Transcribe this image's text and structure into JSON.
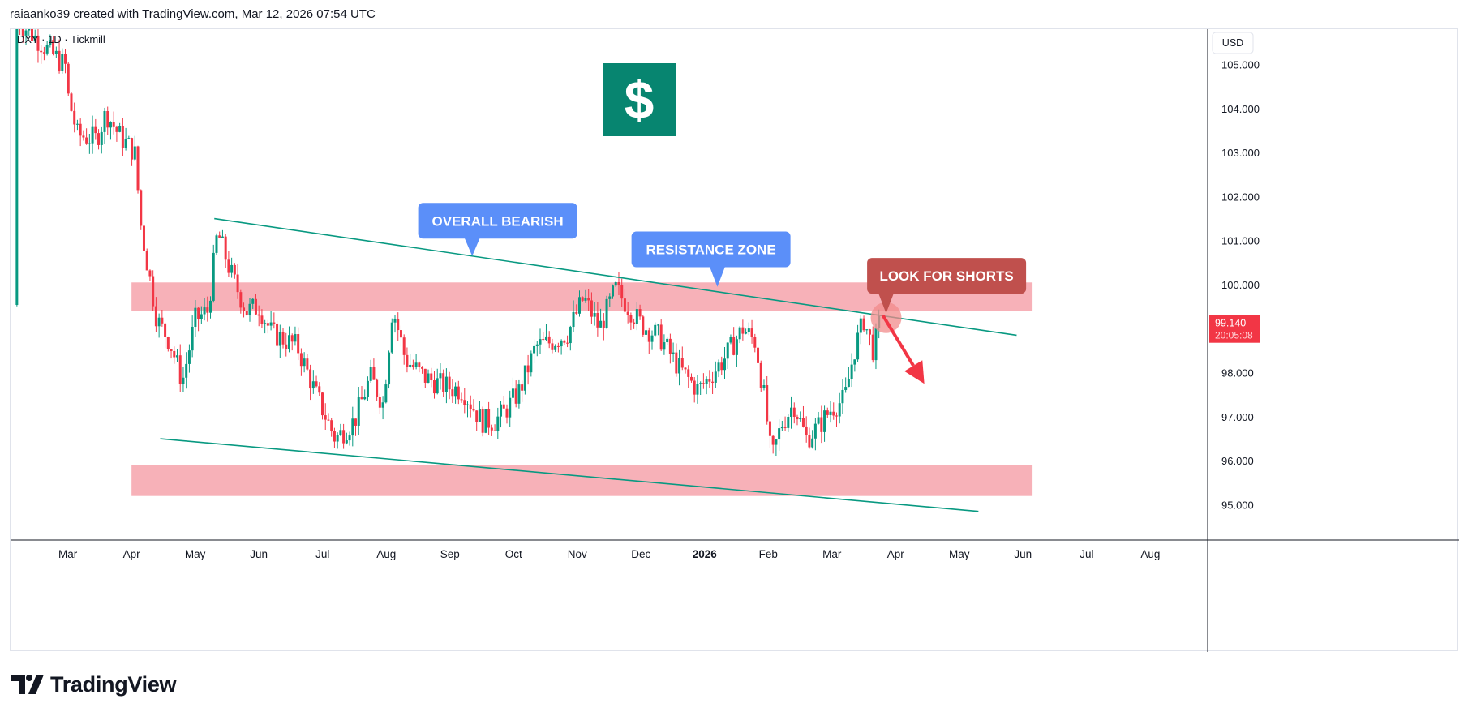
{
  "header": {
    "caption": "raiaanko39 created with TradingView.com, Mar 12, 2026 07:54 UTC"
  },
  "footer": {
    "brand": "TradingView"
  },
  "chart_data": {
    "type": "candlestick",
    "symbol_label": "DXY · 1D · Tickmill",
    "currency_label": "USD",
    "price_axis_ticks": [
      "105.000",
      "104.000",
      "103.000",
      "102.000",
      "101.000",
      "100.000",
      "98.000",
      "97.000",
      "96.000",
      "95.000"
    ],
    "price_axis_values": [
      105,
      104,
      103,
      102,
      101,
      100,
      98,
      97,
      96,
      95
    ],
    "ylim": [
      94.2,
      105.8
    ],
    "time_axis": [
      {
        "label": "Mar",
        "t": 1
      },
      {
        "label": "Apr",
        "t": 2
      },
      {
        "label": "May",
        "t": 3
      },
      {
        "label": "Jun",
        "t": 4
      },
      {
        "label": "Jul",
        "t": 5
      },
      {
        "label": "Aug",
        "t": 6
      },
      {
        "label": "Sep",
        "t": 7
      },
      {
        "label": "Oct",
        "t": 8
      },
      {
        "label": "Nov",
        "t": 9
      },
      {
        "label": "Dec",
        "t": 10
      },
      {
        "label": "2026",
        "t": 11,
        "bold": true
      },
      {
        "label": "Feb",
        "t": 12
      },
      {
        "label": "Mar",
        "t": 13
      },
      {
        "label": "Apr",
        "t": 14
      },
      {
        "label": "May",
        "t": 15
      },
      {
        "label": "Jun",
        "t": 16
      },
      {
        "label": "Jul",
        "t": 17
      },
      {
        "label": "Aug",
        "t": 18
      }
    ],
    "xlim": [
      0.1,
      18.9
    ],
    "last_price": {
      "price": "99.140",
      "countdown": "20:05:08",
      "value": 99.14
    },
    "path_keypoints": [
      {
        "t": 1.0,
        "p": 104.3
      },
      {
        "t": 1.15,
        "p": 103.4
      },
      {
        "t": 1.45,
        "p": 103.3
      },
      {
        "t": 1.6,
        "p": 103.9
      },
      {
        "t": 1.8,
        "p": 103.4
      },
      {
        "t": 2.05,
        "p": 103.0
      },
      {
        "t": 2.15,
        "p": 101.3
      },
      {
        "t": 2.4,
        "p": 99.2
      },
      {
        "t": 2.6,
        "p": 98.7
      },
      {
        "t": 2.8,
        "p": 97.8
      },
      {
        "t": 3.0,
        "p": 99.2
      },
      {
        "t": 3.2,
        "p": 99.4
      },
      {
        "t": 3.35,
        "p": 101.2
      },
      {
        "t": 3.55,
        "p": 100.3
      },
      {
        "t": 3.8,
        "p": 99.4
      },
      {
        "t": 4.0,
        "p": 99.5
      },
      {
        "t": 4.2,
        "p": 98.9
      },
      {
        "t": 4.6,
        "p": 98.6
      },
      {
        "t": 4.9,
        "p": 97.5
      },
      {
        "t": 5.2,
        "p": 96.5
      },
      {
        "t": 5.5,
        "p": 96.9
      },
      {
        "t": 5.75,
        "p": 97.9
      },
      {
        "t": 5.95,
        "p": 97.3
      },
      {
        "t": 6.1,
        "p": 99.5
      },
      {
        "t": 6.3,
        "p": 98.3
      },
      {
        "t": 6.6,
        "p": 97.9
      },
      {
        "t": 6.9,
        "p": 97.7
      },
      {
        "t": 7.2,
        "p": 97.6
      },
      {
        "t": 7.5,
        "p": 96.9
      },
      {
        "t": 7.7,
        "p": 96.9
      },
      {
        "t": 7.85,
        "p": 97.1
      },
      {
        "t": 8.1,
        "p": 97.6
      },
      {
        "t": 8.35,
        "p": 98.6
      },
      {
        "t": 8.6,
        "p": 98.7
      },
      {
        "t": 8.85,
        "p": 98.9
      },
      {
        "t": 9.1,
        "p": 99.7
      },
      {
        "t": 9.35,
        "p": 99.0
      },
      {
        "t": 9.6,
        "p": 99.9
      },
      {
        "t": 9.8,
        "p": 99.5
      },
      {
        "t": 10.0,
        "p": 99.1
      },
      {
        "t": 10.3,
        "p": 98.8
      },
      {
        "t": 10.6,
        "p": 98.1
      },
      {
        "t": 10.9,
        "p": 97.6
      },
      {
        "t": 11.3,
        "p": 98.3
      },
      {
        "t": 11.6,
        "p": 99.0
      },
      {
        "t": 11.8,
        "p": 98.7
      },
      {
        "t": 11.95,
        "p": 97.3
      },
      {
        "t": 12.05,
        "p": 96.0
      },
      {
        "t": 12.2,
        "p": 96.8
      },
      {
        "t": 12.4,
        "p": 97.3
      },
      {
        "t": 12.6,
        "p": 96.5
      },
      {
        "t": 12.8,
        "p": 96.8
      },
      {
        "t": 13.0,
        "p": 97.2
      },
      {
        "t": 13.2,
        "p": 97.4
      },
      {
        "t": 13.35,
        "p": 98.5
      },
      {
        "t": 13.5,
        "p": 99.2
      },
      {
        "t": 13.65,
        "p": 98.5
      },
      {
        "t": 13.75,
        "p": 99.14
      }
    ],
    "zones": [
      {
        "name": "resistance-zone",
        "p_top": 100.05,
        "p_bottom": 99.4,
        "t_start": 2.0,
        "t_end": 16.15,
        "color": "#f7b1b8"
      },
      {
        "name": "support-zone",
        "p_top": 95.9,
        "p_bottom": 95.2,
        "t_start": 2.0,
        "t_end": 16.15,
        "color": "#f7b1b8"
      }
    ],
    "trendlines": [
      {
        "name": "upper-trendline",
        "t1": 3.3,
        "p1": 101.5,
        "t2": 15.9,
        "p2": 98.85,
        "color": "#089981"
      },
      {
        "name": "lower-trendline",
        "t1": 2.45,
        "p1": 96.5,
        "t2": 15.3,
        "p2": 94.85,
        "color": "#089981"
      }
    ],
    "annotations": [
      {
        "name": "overall-bearish-callout",
        "text": "OVERALL BEARISH",
        "t": 7.75,
        "p": 101.45,
        "pointer_t": 7.35,
        "pointer_p": 100.65,
        "color": "#5b8ff9"
      },
      {
        "name": "resistance-zone-callout",
        "text": "RESISTANCE ZONE",
        "t": 11.1,
        "p": 100.8,
        "pointer_t": 11.2,
        "pointer_p": 99.95,
        "color": "#5b8ff9"
      },
      {
        "name": "look-for-shorts-callout",
        "text": "LOOK FOR SHORTS",
        "t": 14.8,
        "p": 100.2,
        "pointer_t": 13.85,
        "pointer_p": 99.35,
        "color": "#c0504d"
      }
    ],
    "highlight_circle": {
      "t": 13.85,
      "p": 99.25,
      "color": "#f28b8b"
    },
    "projection_arrow": {
      "t1": 13.8,
      "p1": 99.3,
      "t2": 14.45,
      "p2": 97.75,
      "color": "#f23645"
    },
    "icon": {
      "name": "dollar-icon",
      "glyph": "$",
      "bg": "#078570"
    },
    "colors": {
      "up": "#089981",
      "down": "#f23645"
    }
  }
}
